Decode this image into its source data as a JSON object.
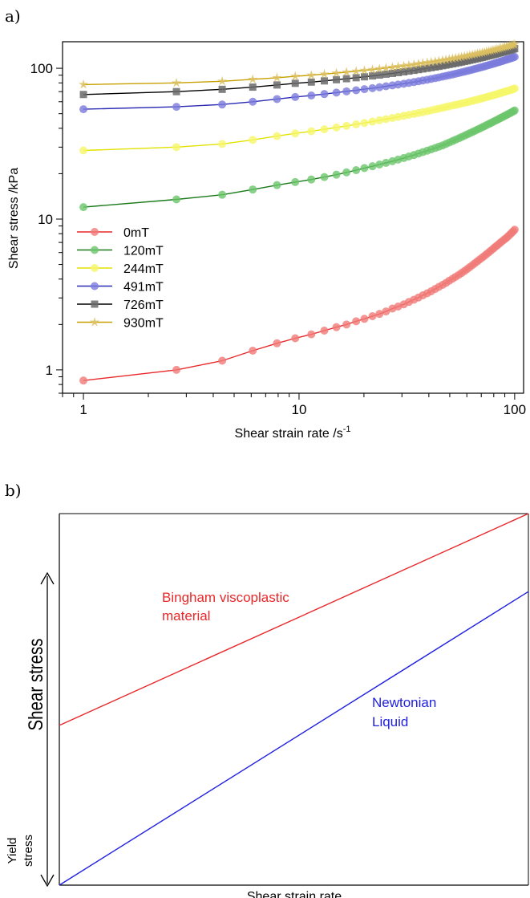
{
  "panels": {
    "a_label": "a)",
    "b_label": "b)"
  },
  "chart_data": [
    {
      "type": "line",
      "xscale": "log",
      "yscale": "log",
      "xlabel": "Shear strain rate /s",
      "xlabel_sup": "-1",
      "ylabel": "Shear stress /kPa",
      "xlim": [
        0.8,
        110
      ],
      "ylim": [
        0.7,
        150
      ],
      "x_ticks": [
        {
          "v": 1,
          "label": "1"
        },
        {
          "v": 10,
          "label": "10"
        },
        {
          "v": 100,
          "label": "100"
        }
      ],
      "y_ticks": [
        {
          "v": 1,
          "label": "1"
        },
        {
          "v": 10,
          "label": "10"
        },
        {
          "v": 100,
          "label": "100"
        }
      ],
      "legend_position": "left",
      "x": [
        1,
        2.7,
        4.4,
        6.1,
        7.9,
        9.6,
        11.4,
        13.1,
        14.9,
        16.6,
        18.4,
        20.1,
        21.9,
        23.6,
        25.3,
        27.1,
        28.8,
        30.6,
        32.3,
        34.1,
        35.8,
        37.5,
        39.3,
        41.0,
        42.8,
        44.5,
        46.3,
        48.0,
        49.7,
        51.5,
        53.2,
        55.0,
        56.7,
        58.5,
        60.2,
        61.9,
        63.7,
        65.4,
        67.2,
        68.9,
        70.7,
        72.4,
        74.1,
        75.9,
        77.6,
        79.4,
        81.1,
        82.9,
        84.6,
        86.3,
        88.1,
        89.8,
        91.6,
        93.3,
        95.1,
        96.8,
        98.5,
        100
      ],
      "series": [
        {
          "name": "0mT",
          "color": "#e8282a",
          "marker_color": "#f07a78",
          "marker": "circle",
          "values": [
            0.85,
            1.0,
            1.15,
            1.34,
            1.5,
            1.62,
            1.72,
            1.82,
            1.92,
            2.0,
            2.1,
            2.18,
            2.27,
            2.35,
            2.44,
            2.55,
            2.63,
            2.72,
            2.82,
            2.92,
            3.02,
            3.12,
            3.22,
            3.32,
            3.44,
            3.55,
            3.66,
            3.77,
            3.9,
            4.02,
            4.14,
            4.26,
            4.39,
            4.52,
            4.66,
            4.8,
            4.95,
            5.1,
            5.25,
            5.4,
            5.55,
            5.7,
            5.86,
            6.02,
            6.18,
            6.35,
            6.52,
            6.68,
            6.85,
            7.02,
            7.18,
            7.35,
            7.5,
            7.7,
            7.9,
            8.1,
            8.3,
            8.5
          ]
        },
        {
          "name": "120mT",
          "color": "#1a7a1a",
          "marker_color": "#6cc56c",
          "marker": "circle",
          "values": [
            12,
            13.5,
            14.5,
            15.7,
            16.8,
            17.6,
            18.3,
            19.0,
            19.7,
            20.4,
            21.1,
            21.8,
            22.4,
            23.0,
            23.6,
            24.2,
            24.8,
            25.4,
            26.0,
            26.6,
            27.2,
            27.8,
            28.4,
            29.0,
            29.6,
            30.2,
            30.8,
            31.5,
            32.2,
            32.9,
            33.6,
            34.3,
            35.0,
            35.7,
            36.4,
            37.1,
            37.8,
            38.5,
            39.2,
            39.9,
            40.6,
            41.3,
            42.0,
            42.7,
            43.4,
            44.1,
            44.8,
            45.5,
            46.2,
            46.9,
            47.6,
            48.3,
            49.0,
            49.7,
            50.4,
            51.1,
            51.8,
            52.5
          ]
        },
        {
          "name": "244mT",
          "color": "#e2e200",
          "marker_color": "#f6f66a",
          "marker": "circle",
          "values": [
            28.5,
            30.0,
            31.5,
            33.5,
            35.5,
            37.0,
            38.2,
            39.4,
            40.5,
            41.5,
            42.5,
            43.4,
            44.3,
            45.2,
            46.0,
            46.8,
            47.6,
            48.4,
            49.1,
            49.8,
            50.5,
            51.2,
            51.9,
            52.6,
            53.3,
            54.0,
            54.7,
            55.4,
            56.0,
            56.6,
            57.2,
            57.8,
            58.4,
            59.0,
            59.6,
            60.2,
            60.8,
            61.4,
            62.0,
            62.6,
            63.2,
            63.8,
            64.4,
            65.0,
            65.6,
            66.2,
            66.8,
            67.4,
            68.0,
            68.6,
            69.2,
            69.8,
            70.4,
            71.0,
            71.6,
            72.2,
            72.8,
            73.4
          ]
        },
        {
          "name": "491mT",
          "color": "#2a2ab5",
          "marker_color": "#7b7bdc",
          "marker": "circle",
          "values": [
            53.5,
            55.5,
            57.5,
            60.0,
            62.5,
            64.5,
            66.0,
            67.5,
            69.0,
            70.3,
            71.5,
            72.7,
            73.8,
            74.9,
            76.0,
            77.0,
            78.0,
            79.0,
            80.0,
            81.0,
            82.0,
            83.0,
            84.0,
            85.0,
            86.0,
            87.0,
            88.0,
            89.0,
            90.0,
            91.0,
            92.0,
            93.0,
            94.0,
            95.0,
            96.0,
            97.0,
            98.0,
            99.0,
            100.0,
            101.0,
            102.0,
            103.0,
            104.0,
            105.0,
            106.0,
            107.0,
            108.0,
            109.0,
            110.0,
            111.0,
            112.0,
            113.0,
            114.0,
            115.0,
            116.0,
            117.0,
            118.0,
            119.0
          ]
        },
        {
          "name": "726mT",
          "color": "#000000",
          "marker_color": "#6a6a6a",
          "marker": "square",
          "values": [
            67.0,
            70.0,
            72.5,
            75.0,
            77.5,
            79.5,
            81.0,
            82.5,
            84.0,
            85.3,
            86.6,
            87.8,
            89.0,
            90.2,
            91.4,
            92.5,
            93.6,
            94.7,
            95.8,
            96.9,
            98.0,
            99.0,
            100.0,
            101.0,
            102.0,
            103.0,
            104.0,
            105.0,
            106.0,
            107.0,
            108.0,
            109.0,
            110.0,
            111.0,
            112.0,
            113.0,
            114.0,
            115.0,
            116.0,
            117.0,
            118.0,
            119.0,
            120.0,
            121.0,
            122.0,
            123.0,
            124.0,
            125.0,
            126.0,
            127.0,
            128.0,
            129.0,
            130.0,
            131.0,
            132.0,
            133.0,
            134.0,
            135.0
          ]
        },
        {
          "name": " 930mT",
          "color": "#c8a000",
          "marker_color": "#dcc060",
          "marker": "star",
          "values": [
            78.0,
            80.0,
            82.0,
            84.5,
            86.5,
            88.5,
            90.0,
            91.5,
            93.0,
            94.3,
            95.6,
            96.8,
            98.0,
            99.2,
            100.4,
            101.5,
            102.6,
            103.7,
            104.8,
            105.9,
            107.0,
            108.0,
            109.0,
            110.0,
            111.0,
            112.0,
            113.0,
            114.0,
            115.0,
            116.0,
            117.0,
            118.0,
            119.0,
            120.0,
            121.0,
            122.0,
            123.0,
            124.0,
            125.0,
            126.0,
            127.0,
            128.0,
            129.0,
            130.0,
            131.0,
            132.0,
            133.0,
            134.0,
            135.0,
            136.0,
            137.0,
            138.0,
            139.0,
            140.0,
            141.0,
            142.0,
            143.0,
            144.0
          ]
        }
      ]
    },
    {
      "type": "line",
      "xlabel": "Shear strain rate",
      "ylabel": "Shear stress",
      "xlim": [
        0,
        1
      ],
      "ylim": [
        0,
        1
      ],
      "annotation_yield": [
        "Yield",
        "stress"
      ],
      "series": [
        {
          "name": "Bingham viscoplastic material",
          "label_lines": [
            "Bingham viscoplastic",
            "material"
          ],
          "color": "#e8282a",
          "x": [
            0,
            1
          ],
          "values": [
            0.43,
            1.0
          ]
        },
        {
          "name": "Newtonian Liquid",
          "label_lines": [
            "Newtonian",
            "Liquid"
          ],
          "color": "#2020e0",
          "x": [
            0,
            1
          ],
          "values": [
            0.0,
            0.79
          ]
        }
      ]
    }
  ]
}
